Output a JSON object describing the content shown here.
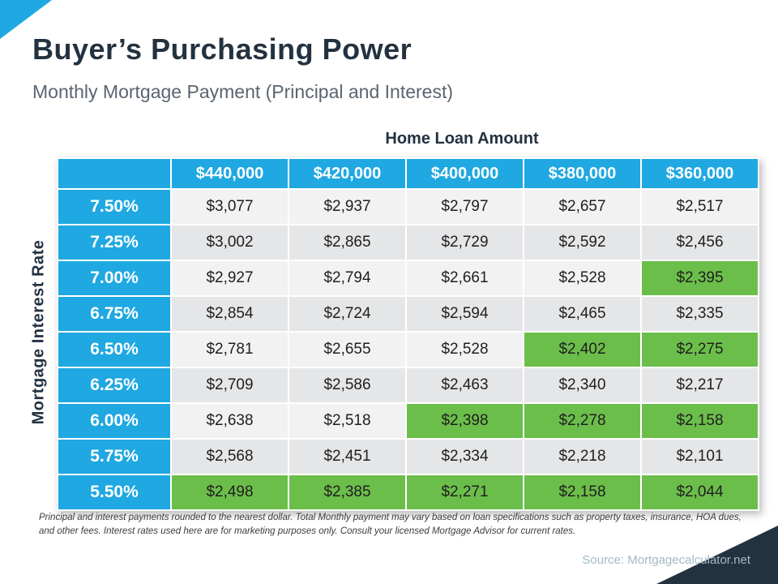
{
  "page": {
    "title": "Buyer’s Purchasing Power",
    "subtitle": "Monthly Mortgage Payment (Principal and Interest)",
    "footnote": "Principal and interest payments rounded to the nearest dollar. Total Monthly payment may vary based on loan specifications such as property taxes, insurance, HOA dues, and other fees. Interest rates used here are for marketing purposes only. Consult your licensed Mortgage Advisor for current rates.",
    "source": "Source: Mortgagecalculator.net"
  },
  "colors": {
    "blue": "#1fa8e1",
    "green": "#6cbe4b",
    "navy": "#233240",
    "row_light": "#f2f2f3",
    "row_dark": "#e5e6e8"
  },
  "chart_data": {
    "type": "table",
    "title": "Home Loan Amount",
    "row_header_label": "Mortgage  Interest Rate",
    "columns": [
      "$440,000",
      "$420,000",
      "$400,000",
      "$380,000",
      "$360,000"
    ],
    "rows": [
      {
        "rate": "7.50%",
        "values": [
          "$3,077",
          "$2,937",
          "$2,797",
          "$2,657",
          "$2,517"
        ],
        "green_from": 5
      },
      {
        "rate": "7.25%",
        "values": [
          "$3,002",
          "$2,865",
          "$2,729",
          "$2,592",
          "$2,456"
        ],
        "green_from": 4
      },
      {
        "rate": "7.00%",
        "values": [
          "$2,927",
          "$2,794",
          "$2,661",
          "$2,528",
          "$2,395"
        ],
        "green_from": 4
      },
      {
        "rate": "6.75%",
        "values": [
          "$2,854",
          "$2,724",
          "$2,594",
          "$2,465",
          "$2,335"
        ],
        "green_from": 3
      },
      {
        "rate": "6.50%",
        "values": [
          "$2,781",
          "$2,655",
          "$2,528",
          "$2,402",
          "$2,275"
        ],
        "green_from": 3
      },
      {
        "rate": "6.25%",
        "values": [
          "$2,709",
          "$2,586",
          "$2,463",
          "$2,340",
          "$2,217"
        ],
        "green_from": 2
      },
      {
        "rate": "6.00%",
        "values": [
          "$2,638",
          "$2,518",
          "$2,398",
          "$2,278",
          "$2,158"
        ],
        "green_from": 2
      },
      {
        "rate": "5.75%",
        "values": [
          "$2,568",
          "$2,451",
          "$2,334",
          "$2,218",
          "$2,101"
        ],
        "green_from": 1
      },
      {
        "rate": "5.50%",
        "values": [
          "$2,498",
          "$2,385",
          "$2,271",
          "$2,158",
          "$2,044"
        ],
        "green_from": 0
      }
    ]
  }
}
